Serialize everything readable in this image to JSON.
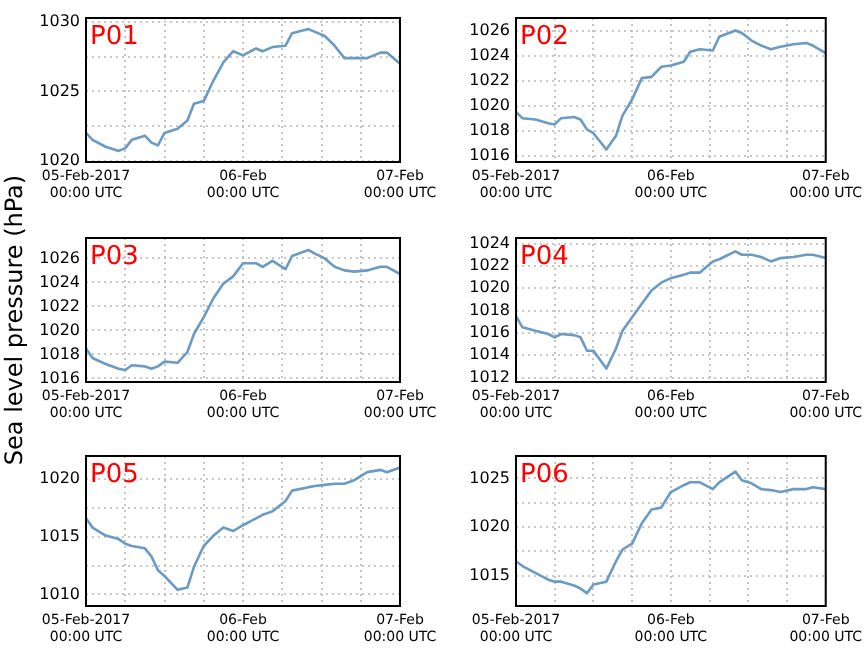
{
  "chart_data": [
    {
      "type": "line",
      "title": "P01",
      "x": [
        "2017-02-05T00:00",
        "2017-02-05T01:00",
        "2017-02-05T03:00",
        "2017-02-05T05:00",
        "2017-02-05T06:00",
        "2017-02-05T07:00",
        "2017-02-05T09:00",
        "2017-02-05T10:00",
        "2017-02-05T11:00",
        "2017-02-05T12:00",
        "2017-02-05T14:00",
        "2017-02-05T15:30",
        "2017-02-05T16:30",
        "2017-02-05T18:00",
        "2017-02-05T19:30",
        "2017-02-05T21:00",
        "2017-02-05T22:30",
        "2017-02-06T00:00",
        "2017-02-06T02:00",
        "2017-02-06T03:00",
        "2017-02-06T04:30",
        "2017-02-06T06:30",
        "2017-02-06T07:30",
        "2017-02-06T10:00",
        "2017-02-06T11:00",
        "2017-02-06T12:30",
        "2017-02-06T14:00",
        "2017-02-06T15:30",
        "2017-02-06T17:00",
        "2017-02-06T19:00",
        "2017-02-06T21:00",
        "2017-02-06T22:00",
        "2017-02-07T00:00"
      ],
      "series": [
        {
          "color": "#6b9ac4",
          "values": [
            1022.0,
            1021.5,
            1021.0,
            1020.7,
            1020.9,
            1021.5,
            1021.8,
            1021.3,
            1021.1,
            1022.0,
            1022.3,
            1022.9,
            1024.1,
            1024.3,
            1025.8,
            1027.1,
            1027.9,
            1027.6,
            1028.1,
            1027.9,
            1028.2,
            1028.3,
            1029.2,
            1029.5,
            1029.3,
            1029.0,
            1028.3,
            1027.4,
            1027.4,
            1027.4,
            1027.8,
            1027.8,
            1027.0
          ]
        }
      ],
      "xlim": [
        "2017-02-05T00:00",
        "2017-02-07T00:00"
      ],
      "xticks": [
        {
          "value": "2017-02-05T00:00",
          "label": "05-Feb-2017\n00:00 UTC"
        },
        {
          "value": "2017-02-05T06:00",
          "label": null
        },
        {
          "value": "2017-02-05T12:00",
          "label": null
        },
        {
          "value": "2017-02-05T18:00",
          "label": null
        },
        {
          "value": "2017-02-06T00:00",
          "label": "06-Feb\n00:00 UTC"
        },
        {
          "value": "2017-02-06T06:00",
          "label": null
        },
        {
          "value": "2017-02-06T12:00",
          "label": null
        },
        {
          "value": "2017-02-06T18:00",
          "label": null
        },
        {
          "value": "2017-02-07T00:00",
          "label": "07-Feb\n00:00 UTC"
        }
      ],
      "ylim": [
        1019.9,
        1030.3
      ],
      "yticks": [
        1020,
        {
          "value": 1022.5,
          "label": null
        },
        1025,
        {
          "value": 1027.5,
          "label": null
        },
        1030
      ],
      "grid": true,
      "legend": false,
      "marker": "none",
      "line_style": "solid"
    },
    {
      "type": "line",
      "title": "P02",
      "x": [
        "2017-02-05T00:00",
        "2017-02-05T01:00",
        "2017-02-05T03:00",
        "2017-02-05T05:00",
        "2017-02-05T06:00",
        "2017-02-05T07:00",
        "2017-02-05T09:00",
        "2017-02-05T10:00",
        "2017-02-05T11:00",
        "2017-02-05T12:00",
        "2017-02-05T14:00",
        "2017-02-05T15:30",
        "2017-02-05T16:30",
        "2017-02-05T18:00",
        "2017-02-05T19:30",
        "2017-02-05T21:00",
        "2017-02-05T22:30",
        "2017-02-06T00:00",
        "2017-02-06T02:00",
        "2017-02-06T03:00",
        "2017-02-06T04:30",
        "2017-02-06T06:30",
        "2017-02-06T07:30",
        "2017-02-06T10:00",
        "2017-02-06T11:00",
        "2017-02-06T12:30",
        "2017-02-06T14:00",
        "2017-02-06T15:30",
        "2017-02-06T17:00",
        "2017-02-06T19:00",
        "2017-02-06T21:00",
        "2017-02-06T22:00",
        "2017-02-07T00:00"
      ],
      "series": [
        {
          "color": "#6b9ac4",
          "values": [
            1019.5,
            1019.0,
            1018.9,
            1018.6,
            1018.5,
            1019.0,
            1019.1,
            1018.9,
            1018.1,
            1017.8,
            1016.5,
            1017.6,
            1019.2,
            1020.5,
            1022.2,
            1022.3,
            1023.1,
            1023.2,
            1023.5,
            1024.3,
            1024.5,
            1024.4,
            1025.5,
            1026.0,
            1025.8,
            1025.2,
            1024.8,
            1024.5,
            1024.7,
            1024.9,
            1025.0,
            1024.8,
            1024.2
          ]
        }
      ],
      "xlim": [
        "2017-02-05T00:00",
        "2017-02-07T00:00"
      ],
      "xticks": [
        {
          "value": "2017-02-05T00:00",
          "label": "05-Feb-2017\n00:00 UTC"
        },
        {
          "value": "2017-02-05T06:00",
          "label": null
        },
        {
          "value": "2017-02-05T12:00",
          "label": null
        },
        {
          "value": "2017-02-05T18:00",
          "label": null
        },
        {
          "value": "2017-02-06T00:00",
          "label": "06-Feb\n00:00 UTC"
        },
        {
          "value": "2017-02-06T06:00",
          "label": null
        },
        {
          "value": "2017-02-06T12:00",
          "label": null
        },
        {
          "value": "2017-02-06T18:00",
          "label": null
        },
        {
          "value": "2017-02-07T00:00",
          "label": "07-Feb\n00:00 UTC"
        }
      ],
      "ylim": [
        1015.5,
        1027
      ],
      "yticks": [
        1016,
        1018,
        1020,
        1022,
        1024,
        1026
      ],
      "grid": true,
      "legend": false,
      "marker": "none",
      "line_style": "solid"
    },
    {
      "type": "line",
      "title": "P03",
      "ylabel": "Sea level pressure (hPa)",
      "x": [
        "2017-02-05T00:00",
        "2017-02-05T01:00",
        "2017-02-05T03:00",
        "2017-02-05T05:00",
        "2017-02-05T06:00",
        "2017-02-05T07:00",
        "2017-02-05T09:00",
        "2017-02-05T10:00",
        "2017-02-05T11:00",
        "2017-02-05T12:00",
        "2017-02-05T14:00",
        "2017-02-05T15:30",
        "2017-02-05T16:30",
        "2017-02-05T18:00",
        "2017-02-05T19:30",
        "2017-02-05T21:00",
        "2017-02-05T22:30",
        "2017-02-06T00:00",
        "2017-02-06T02:00",
        "2017-02-06T03:00",
        "2017-02-06T04:30",
        "2017-02-06T06:30",
        "2017-02-06T07:30",
        "2017-02-06T10:00",
        "2017-02-06T11:00",
        "2017-02-06T12:30",
        "2017-02-06T14:00",
        "2017-02-06T15:30",
        "2017-02-06T17:00",
        "2017-02-06T19:00",
        "2017-02-06T21:00",
        "2017-02-06T22:00",
        "2017-02-07T00:00"
      ],
      "series": [
        {
          "color": "#6b9ac4",
          "values": [
            1018.5,
            1017.7,
            1017.2,
            1016.8,
            1016.7,
            1017.1,
            1017.0,
            1016.8,
            1017.0,
            1017.4,
            1017.3,
            1018.2,
            1019.7,
            1021.1,
            1022.7,
            1023.9,
            1024.5,
            1025.6,
            1025.6,
            1025.3,
            1025.8,
            1025.1,
            1026.2,
            1026.7,
            1026.4,
            1026.0,
            1025.3,
            1025.0,
            1024.9,
            1025.0,
            1025.3,
            1025.3,
            1024.7
          ]
        }
      ],
      "xlim": [
        "2017-02-05T00:00",
        "2017-02-07T00:00"
      ],
      "xticks": [
        {
          "value": "2017-02-05T00:00",
          "label": "05-Feb-2017\n00:00 UTC"
        },
        {
          "value": "2017-02-05T06:00",
          "label": null
        },
        {
          "value": "2017-02-05T12:00",
          "label": null
        },
        {
          "value": "2017-02-05T18:00",
          "label": null
        },
        {
          "value": "2017-02-06T00:00",
          "label": "06-Feb\n00:00 UTC"
        },
        {
          "value": "2017-02-06T06:00",
          "label": null
        },
        {
          "value": "2017-02-06T12:00",
          "label": null
        },
        {
          "value": "2017-02-06T18:00",
          "label": null
        },
        {
          "value": "2017-02-07T00:00",
          "label": "07-Feb\n00:00 UTC"
        }
      ],
      "ylim": [
        1015.7,
        1027.7
      ],
      "yticks": [
        1016,
        1018,
        1020,
        1022,
        1024,
        1026
      ],
      "grid": true,
      "legend": false,
      "marker": "none",
      "line_style": "solid"
    },
    {
      "type": "line",
      "title": "P04",
      "x": [
        "2017-02-05T00:00",
        "2017-02-05T01:00",
        "2017-02-05T03:00",
        "2017-02-05T05:00",
        "2017-02-05T06:00",
        "2017-02-05T07:00",
        "2017-02-05T09:00",
        "2017-02-05T10:00",
        "2017-02-05T11:00",
        "2017-02-05T12:00",
        "2017-02-05T14:00",
        "2017-02-05T15:30",
        "2017-02-05T16:30",
        "2017-02-05T18:00",
        "2017-02-05T19:30",
        "2017-02-05T21:00",
        "2017-02-05T22:30",
        "2017-02-06T00:00",
        "2017-02-06T02:00",
        "2017-02-06T03:00",
        "2017-02-06T04:30",
        "2017-02-06T06:30",
        "2017-02-06T07:30",
        "2017-02-06T10:00",
        "2017-02-06T11:00",
        "2017-02-06T12:30",
        "2017-02-06T14:00",
        "2017-02-06T15:30",
        "2017-02-06T17:00",
        "2017-02-06T19:00",
        "2017-02-06T21:00",
        "2017-02-06T22:00",
        "2017-02-07T00:00"
      ],
      "series": [
        {
          "color": "#6b9ac4",
          "values": [
            1017.5,
            1016.5,
            1016.2,
            1015.9,
            1015.6,
            1015.9,
            1015.8,
            1015.6,
            1014.4,
            1014.4,
            1012.8,
            1014.6,
            1016.2,
            1017.4,
            1018.6,
            1019.8,
            1020.5,
            1020.9,
            1021.2,
            1021.4,
            1021.4,
            1022.4,
            1022.6,
            1023.3,
            1023.0,
            1023.0,
            1022.8,
            1022.4,
            1022.7,
            1022.8,
            1023.0,
            1023.0,
            1022.7
          ]
        }
      ],
      "xlim": [
        "2017-02-05T00:00",
        "2017-02-07T00:00"
      ],
      "xticks": [
        {
          "value": "2017-02-05T00:00",
          "label": "05-Feb-2017\n00:00 UTC"
        },
        {
          "value": "2017-02-05T06:00",
          "label": null
        },
        {
          "value": "2017-02-05T12:00",
          "label": null
        },
        {
          "value": "2017-02-05T18:00",
          "label": null
        },
        {
          "value": "2017-02-06T00:00",
          "label": "06-Feb\n00:00 UTC"
        },
        {
          "value": "2017-02-06T06:00",
          "label": null
        },
        {
          "value": "2017-02-06T12:00",
          "label": null
        },
        {
          "value": "2017-02-06T18:00",
          "label": null
        },
        {
          "value": "2017-02-07T00:00",
          "label": "07-Feb\n00:00 UTC"
        }
      ],
      "ylim": [
        1011.6,
        1024.5
      ],
      "yticks": [
        1012,
        1014,
        1016,
        1018,
        1020,
        1022,
        1024
      ],
      "grid": true,
      "legend": false,
      "marker": "none",
      "line_style": "solid"
    },
    {
      "type": "line",
      "title": "P05",
      "x": [
        "2017-02-05T00:00",
        "2017-02-05T01:00",
        "2017-02-05T03:00",
        "2017-02-05T05:00",
        "2017-02-05T06:00",
        "2017-02-05T07:00",
        "2017-02-05T09:00",
        "2017-02-05T10:00",
        "2017-02-05T11:00",
        "2017-02-05T12:00",
        "2017-02-05T14:00",
        "2017-02-05T15:30",
        "2017-02-05T16:30",
        "2017-02-05T18:00",
        "2017-02-05T19:30",
        "2017-02-05T21:00",
        "2017-02-05T22:30",
        "2017-02-06T00:00",
        "2017-02-06T02:00",
        "2017-02-06T03:00",
        "2017-02-06T04:30",
        "2017-02-06T06:30",
        "2017-02-06T07:30",
        "2017-02-06T10:00",
        "2017-02-06T11:00",
        "2017-02-06T12:30",
        "2017-02-06T14:00",
        "2017-02-06T15:30",
        "2017-02-06T17:00",
        "2017-02-06T19:00",
        "2017-02-06T21:00",
        "2017-02-06T22:00",
        "2017-02-07T00:00"
      ],
      "series": [
        {
          "color": "#6b9ac4",
          "values": [
            1016.6,
            1015.8,
            1015.1,
            1014.8,
            1014.4,
            1014.2,
            1014.0,
            1013.3,
            1012.1,
            1011.6,
            1010.4,
            1010.6,
            1012.4,
            1014.2,
            1015.1,
            1015.8,
            1015.5,
            1016.0,
            1016.6,
            1016.9,
            1017.2,
            1018.1,
            1019.0,
            1019.3,
            1019.4,
            1019.5,
            1019.6,
            1019.6,
            1019.9,
            1020.6,
            1020.8,
            1020.6,
            1021.0
          ]
        }
      ],
      "xlim": [
        "2017-02-05T00:00",
        "2017-02-07T00:00"
      ],
      "xticks": [
        {
          "value": "2017-02-05T00:00",
          "label": "05-Feb-2017\n00:00 UTC"
        },
        {
          "value": "2017-02-05T06:00",
          "label": null
        },
        {
          "value": "2017-02-05T12:00",
          "label": null
        },
        {
          "value": "2017-02-05T18:00",
          "label": null
        },
        {
          "value": "2017-02-06T00:00",
          "label": "06-Feb\n00:00 UTC"
        },
        {
          "value": "2017-02-06T06:00",
          "label": null
        },
        {
          "value": "2017-02-06T12:00",
          "label": null
        },
        {
          "value": "2017-02-06T18:00",
          "label": null
        },
        {
          "value": "2017-02-07T00:00",
          "label": "07-Feb\n00:00 UTC"
        }
      ],
      "ylim": [
        1009,
        1022
      ],
      "yticks": [
        1010,
        {
          "value": 1012.5,
          "label": null
        },
        1015,
        {
          "value": 1017.5,
          "label": null
        },
        1020
      ],
      "grid": true,
      "legend": false,
      "marker": "none",
      "line_style": "solid"
    },
    {
      "type": "line",
      "title": "P06",
      "x": [
        "2017-02-05T00:00",
        "2017-02-05T01:00",
        "2017-02-05T03:00",
        "2017-02-05T05:00",
        "2017-02-05T06:00",
        "2017-02-05T07:00",
        "2017-02-05T09:00",
        "2017-02-05T10:00",
        "2017-02-05T11:00",
        "2017-02-05T12:00",
        "2017-02-05T14:00",
        "2017-02-05T15:30",
        "2017-02-05T16:30",
        "2017-02-05T18:00",
        "2017-02-05T19:30",
        "2017-02-05T21:00",
        "2017-02-05T22:30",
        "2017-02-06T00:00",
        "2017-02-06T02:00",
        "2017-02-06T03:00",
        "2017-02-06T04:30",
        "2017-02-06T06:30",
        "2017-02-06T07:30",
        "2017-02-06T10:00",
        "2017-02-06T11:00",
        "2017-02-06T12:30",
        "2017-02-06T14:00",
        "2017-02-06T15:30",
        "2017-02-06T17:00",
        "2017-02-06T19:00",
        "2017-02-06T21:00",
        "2017-02-06T22:00",
        "2017-02-07T00:00"
      ],
      "series": [
        {
          "color": "#6b9ac4",
          "values": [
            1016.5,
            1016.0,
            1015.3,
            1014.6,
            1014.4,
            1014.4,
            1014.0,
            1013.7,
            1013.2,
            1014.1,
            1014.4,
            1016.5,
            1017.7,
            1018.3,
            1020.4,
            1021.8,
            1022.0,
            1023.6,
            1024.3,
            1024.6,
            1024.6,
            1023.9,
            1024.6,
            1025.7,
            1024.8,
            1024.5,
            1023.9,
            1023.8,
            1023.6,
            1023.9,
            1023.9,
            1024.1,
            1023.9
          ]
        }
      ],
      "xlim": [
        "2017-02-05T00:00",
        "2017-02-07T00:00"
      ],
      "xticks": [
        {
          "value": "2017-02-05T00:00",
          "label": "05-Feb-2017\n00:00 UTC"
        },
        {
          "value": "2017-02-05T06:00",
          "label": null
        },
        {
          "value": "2017-02-05T12:00",
          "label": null
        },
        {
          "value": "2017-02-05T18:00",
          "label": null
        },
        {
          "value": "2017-02-06T00:00",
          "label": "06-Feb\n00:00 UTC"
        },
        {
          "value": "2017-02-06T06:00",
          "label": null
        },
        {
          "value": "2017-02-06T12:00",
          "label": null
        },
        {
          "value": "2017-02-06T18:00",
          "label": null
        },
        {
          "value": "2017-02-07T00:00",
          "label": "07-Feb\n00:00 UTC"
        }
      ],
      "ylim": [
        1011.9,
        1027.3
      ],
      "yticks": [
        1015,
        {
          "value": 1017.5,
          "label": null
        },
        1020,
        {
          "value": 1022.5,
          "label": null
        },
        1025
      ],
      "grid": true,
      "legend": false,
      "marker": "none",
      "line_style": "solid"
    }
  ]
}
